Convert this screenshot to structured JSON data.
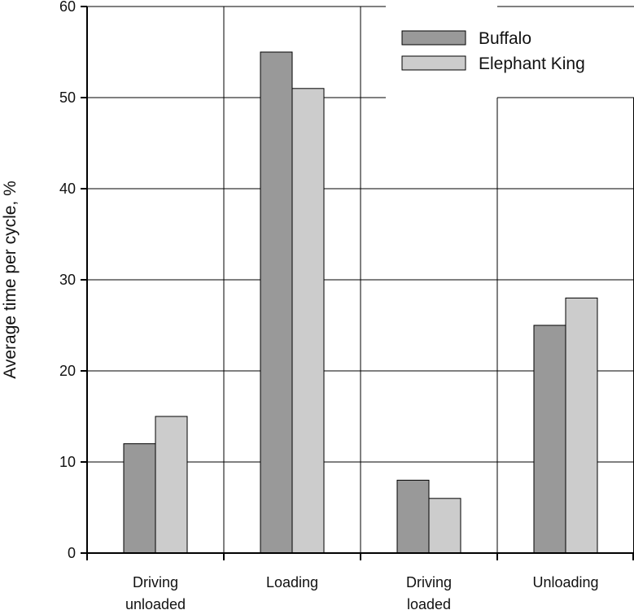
{
  "chart_data": {
    "type": "bar",
    "categories": [
      [
        "Driving",
        "unloaded"
      ],
      [
        "Loading"
      ],
      [
        "Driving",
        "loaded"
      ],
      [
        "Unloading"
      ]
    ],
    "series": [
      {
        "name": "Buffalo",
        "values": [
          12,
          55,
          8,
          25
        ],
        "color": "#999999"
      },
      {
        "name": "Elephant King",
        "values": [
          15,
          51,
          6,
          28
        ],
        "color": "#cccccc"
      }
    ],
    "ylabel": "Average time per cycle, %",
    "ylim": [
      0,
      60
    ],
    "yticks": [
      0,
      10,
      20,
      30,
      40,
      50,
      60
    ],
    "grid": true,
    "legend": "top-right"
  }
}
